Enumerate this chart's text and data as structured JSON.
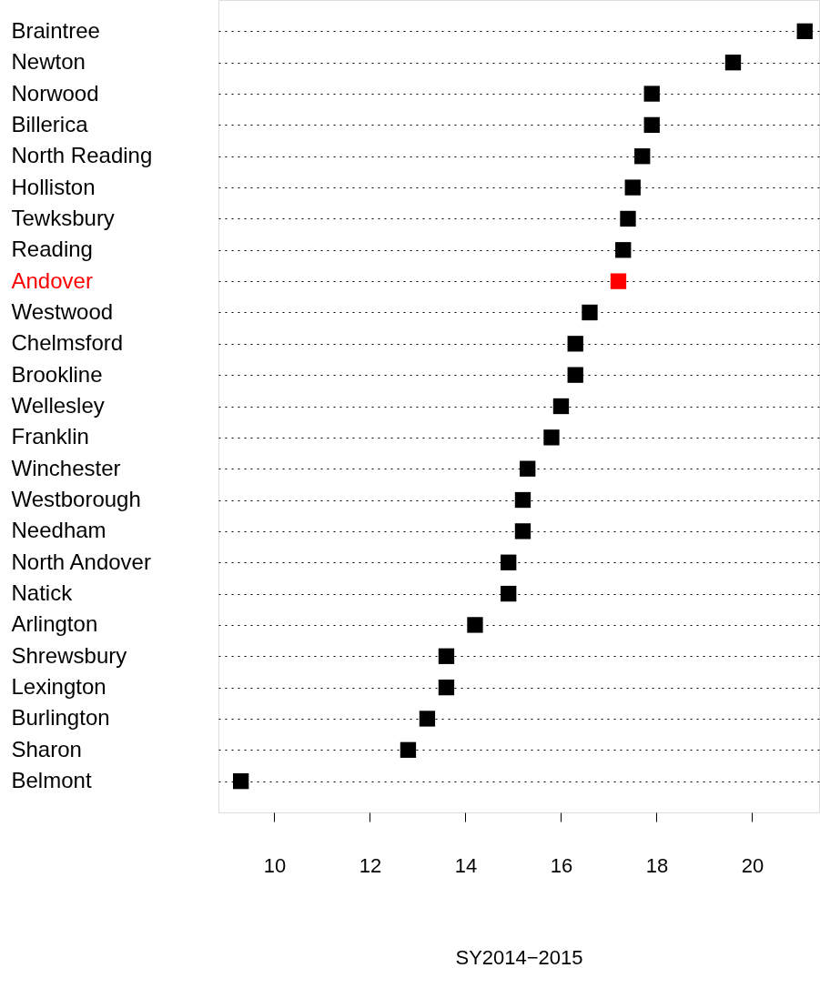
{
  "chart_data": {
    "type": "scatter",
    "orientation": "horizontal",
    "marker": "square",
    "grid": "y",
    "xlabel": "SY2014−2015",
    "categories": [
      "Braintree",
      "Newton",
      "Norwood",
      "Billerica",
      "North Reading",
      "Holliston",
      "Tewksbury",
      "Reading",
      "Andover",
      "Westwood",
      "Chelmsford",
      "Brookline",
      "Wellesley",
      "Franklin",
      "Winchester",
      "Westborough",
      "Needham",
      "North Andover",
      "Natick",
      "Arlington",
      "Shrewsbury",
      "Lexington",
      "Burlington",
      "Sharon",
      "Belmont"
    ],
    "values": [
      21.1,
      19.6,
      17.9,
      17.9,
      17.7,
      17.5,
      17.4,
      17.3,
      17.2,
      16.6,
      16.3,
      16.3,
      16.0,
      15.8,
      15.3,
      15.2,
      15.2,
      14.9,
      14.9,
      14.2,
      13.6,
      13.6,
      13.2,
      12.8,
      9.3
    ],
    "colors": [
      "#000000",
      "#000000",
      "#000000",
      "#000000",
      "#000000",
      "#000000",
      "#000000",
      "#000000",
      "#ff0000",
      "#000000",
      "#000000",
      "#000000",
      "#000000",
      "#000000",
      "#000000",
      "#000000",
      "#000000",
      "#000000",
      "#000000",
      "#000000",
      "#000000",
      "#000000",
      "#000000",
      "#000000",
      "#000000"
    ],
    "xlim": [
      8.83,
      21.4
    ],
    "xticks": [
      10,
      12,
      14,
      16,
      18,
      20
    ]
  }
}
